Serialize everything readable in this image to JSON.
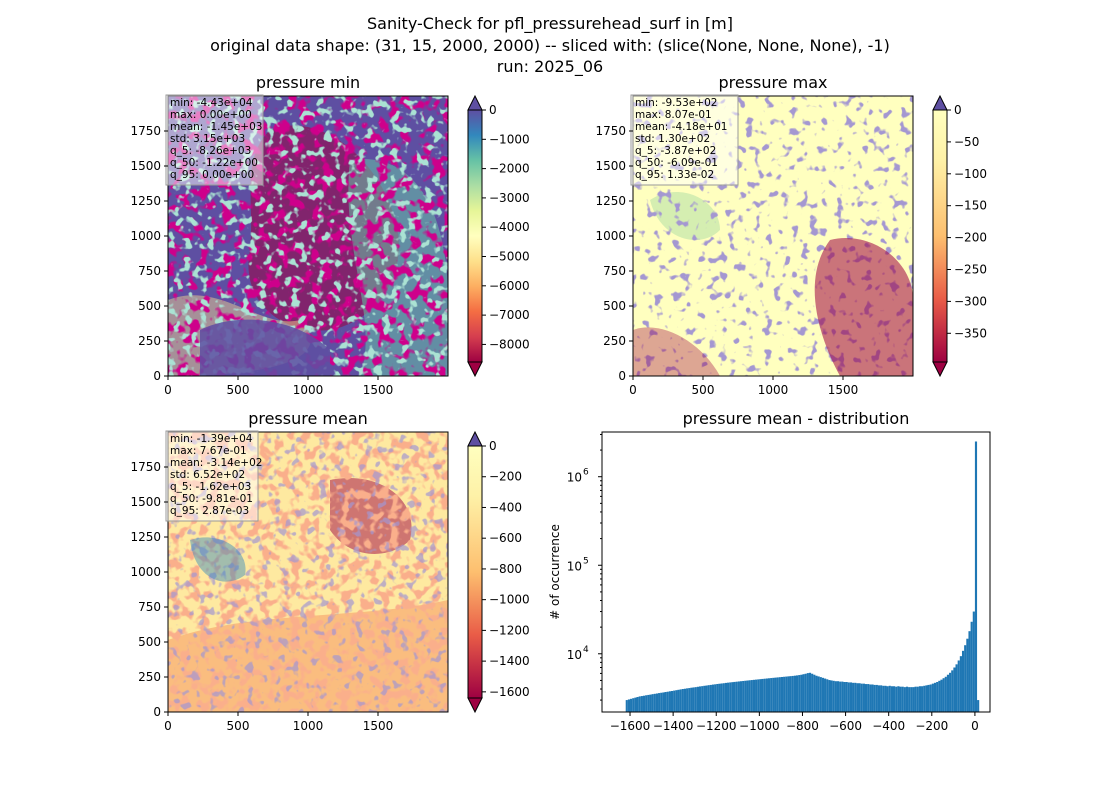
{
  "figure": {
    "title_lines": [
      "Sanity-Check for pfl_pressurehead_surf in [m]",
      "original data shape: (31, 15, 2000, 2000) -- sliced with: (slice(None, None, None), -1)",
      "run: 2025_06"
    ]
  },
  "chart_data": [
    {
      "type": "heatmap",
      "title": "pressure min",
      "colormap": "Spectral",
      "xlim": [
        0,
        2000
      ],
      "ylim": [
        0,
        2000
      ],
      "x_ticks": [
        "0",
        "500",
        "1000",
        "1500"
      ],
      "y_ticks": [
        "0",
        "250",
        "500",
        "750",
        "1000",
        "1250",
        "1500",
        "1750"
      ],
      "colorbar": {
        "range": [
          -8600,
          0
        ],
        "ticks": [
          "0",
          "−1000",
          "−2000",
          "−3000",
          "−4000",
          "−5000",
          "−6000",
          "−7000",
          "−8000"
        ],
        "tick_values": [
          0,
          -1000,
          -2000,
          -3000,
          -4000,
          -5000,
          -6000,
          -7000,
          -8000
        ],
        "extend": "both"
      },
      "stats": [
        "min: -4.43e+04",
        "max: 0.00e+00",
        "mean: -1.45e+03",
        "std: 3.15e+03",
        "q_5: -8.26e+03",
        "q_50: -1.22e+00",
        "q_95: 0.00e+00"
      ]
    },
    {
      "type": "heatmap",
      "title": "pressure max",
      "colormap": "Spectral",
      "xlim": [
        0,
        2000
      ],
      "ylim": [
        0,
        2000
      ],
      "x_ticks": [
        "0",
        "500",
        "1000",
        "1500"
      ],
      "y_ticks": [
        "0",
        "250",
        "500",
        "750",
        "1000",
        "1250",
        "1500",
        "1750"
      ],
      "colorbar": {
        "range": [
          -395,
          0
        ],
        "ticks": [
          "0",
          "−50",
          "−100",
          "−150",
          "−200",
          "−250",
          "−300",
          "−350"
        ],
        "tick_values": [
          0,
          -50,
          -100,
          -150,
          -200,
          -250,
          -300,
          -350
        ],
        "extend": "both"
      },
      "stats": [
        "min: -9.53e+02",
        "max: 8.07e-01",
        "mean: -4.18e+01",
        "std: 1.30e+02",
        "q_5: -3.87e+02",
        "q_50: -6.09e-01",
        "q_95: 1.33e-02"
      ]
    },
    {
      "type": "heatmap",
      "title": "pressure mean",
      "colormap": "Spectral",
      "xlim": [
        0,
        2000
      ],
      "ylim": [
        0,
        2000
      ],
      "x_ticks": [
        "0",
        "500",
        "1000",
        "1500"
      ],
      "y_ticks": [
        "0",
        "250",
        "500",
        "750",
        "1000",
        "1250",
        "1500",
        "1750"
      ],
      "colorbar": {
        "range": [
          -1640,
          0
        ],
        "ticks": [
          "0",
          "−200",
          "−400",
          "−600",
          "−800",
          "−1000",
          "−1200",
          "−1400",
          "−1600"
        ],
        "tick_values": [
          0,
          -200,
          -400,
          -600,
          -800,
          -1000,
          -1200,
          -1400,
          -1600
        ],
        "extend": "both"
      },
      "stats": [
        "min: -1.39e+04",
        "max: 7.67e-01",
        "mean: -3.14e+02",
        "std: 6.52e+02",
        "q_5: -1.62e+03",
        "q_50: -9.81e-01",
        "q_95: 2.87e-03"
      ]
    },
    {
      "type": "bar",
      "title": "pressure mean - distribution",
      "ylabel": "# of occurrence",
      "yscale": "log",
      "xlim": [
        -1730,
        70
      ],
      "ylim": [
        2200,
        3200000
      ],
      "x_ticks": [
        "−1600",
        "−1400",
        "−1200",
        "−1000",
        "−800",
        "−600",
        "−400",
        "−200",
        "0"
      ],
      "x_tick_values": [
        -1600,
        -1400,
        -1200,
        -1000,
        -800,
        -600,
        -400,
        -200,
        0
      ],
      "y_ticks": [
        "10",
        "10",
        "10"
      ],
      "y_tick_exponents": [
        "4",
        "5",
        "6"
      ],
      "y_tick_values": [
        10000,
        100000,
        1000000
      ],
      "bin_width": 10,
      "bin_start": -1620,
      "color": "#1f77b4",
      "values": [
        3000,
        3050,
        3100,
        3150,
        3200,
        3250,
        3300,
        3330,
        3360,
        3400,
        3430,
        3460,
        3500,
        3530,
        3560,
        3600,
        3630,
        3660,
        3700,
        3730,
        3770,
        3800,
        3840,
        3880,
        3920,
        3960,
        4000,
        4030,
        4070,
        4100,
        4140,
        4170,
        4200,
        4240,
        4280,
        4310,
        4350,
        4380,
        4420,
        4450,
        4490,
        4520,
        4560,
        4590,
        4620,
        4650,
        4690,
        4720,
        4750,
        4780,
        4810,
        4840,
        4870,
        4900,
        4930,
        4960,
        4990,
        5020,
        5050,
        5080,
        5110,
        5140,
        5170,
        5200,
        5230,
        5260,
        5290,
        5320,
        5350,
        5380,
        5410,
        5440,
        5470,
        5500,
        5530,
        5560,
        5590,
        5620,
        5660,
        5700,
        5750,
        5800,
        5880,
        5950,
        6050,
        6100,
        5950,
        5800,
        5650,
        5550,
        5450,
        5350,
        5250,
        5150,
        5050,
        5000,
        4950,
        4900,
        4900,
        4850,
        4850,
        4800,
        4800,
        4750,
        4750,
        4700,
        4700,
        4650,
        4650,
        4600,
        4600,
        4550,
        4550,
        4500,
        4500,
        4450,
        4450,
        4400,
        4400,
        4350,
        4350,
        4300,
        4350,
        4300,
        4300,
        4250,
        4300,
        4250,
        4250,
        4200,
        4250,
        4200,
        4200,
        4200,
        4250,
        4250,
        4300,
        4300,
        4350,
        4400,
        4450,
        4500,
        4600,
        4700,
        4800,
        4950,
        5100,
        5300,
        5500,
        5800,
        6100,
        6500,
        7000,
        7600,
        8400,
        9400,
        10800,
        12500,
        14800,
        18000,
        23000,
        30000,
        2500000,
        3000
      ]
    }
  ]
}
